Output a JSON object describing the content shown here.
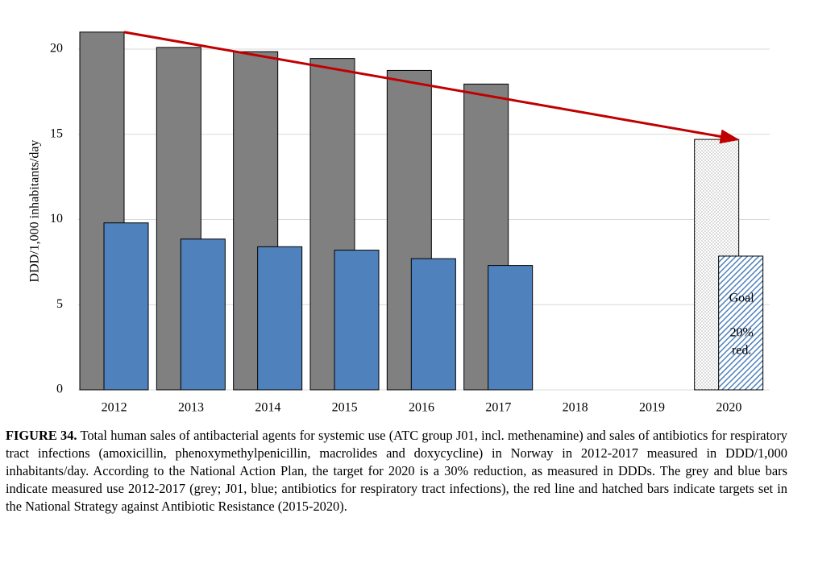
{
  "chart_data": {
    "type": "bar",
    "ylabel": "DDD/1,000 inhabitants/day",
    "categories": [
      "2012",
      "2013",
      "2014",
      "2015",
      "2016",
      "2017",
      "2018",
      "2019",
      "2020"
    ],
    "series": [
      {
        "color": "#808080",
        "values": [
          21.0,
          20.1,
          19.85,
          19.45,
          18.75,
          17.95,
          null,
          null,
          null
        ]
      },
      {
        "color": "#4f81bd",
        "values": [
          9.8,
          8.85,
          8.4,
          8.2,
          7.7,
          7.3,
          null,
          null,
          null
        ]
      },
      {
        "color": "#808080",
        "pattern": "dots",
        "values": [
          null,
          null,
          null,
          null,
          null,
          null,
          null,
          null,
          14.7
        ]
      },
      {
        "color": "#4f81bd",
        "pattern": "hatch",
        "values": [
          null,
          null,
          null,
          null,
          null,
          null,
          null,
          null,
          7.85
        ]
      }
    ],
    "ylim": [
      0,
      21.5
    ],
    "yticks": [
      0,
      5,
      10,
      15,
      20
    ],
    "grid": true,
    "arrow_color": "#c00000",
    "annotations": [
      "Goal",
      "20%",
      "red."
    ]
  },
  "caption": {
    "label": "FIGURE 34.",
    "text": "Total human sales of antibacterial agents for systemic use (ATC group J01, incl. methenamine) and sales of antibiotics for respiratory tract infections (amoxicillin, phenoxymethylpenicillin, macrolides and doxycycline) in Norway in 2012-2017 measured in DDD/1,000 inhabitants/day. According to the National Action Plan, the target for 2020 is a 30% reduction, as measured in DDDs. The grey and blue bars indicate measured use 2012-2017 (grey; J01, blue; antibiotics for respiratory tract infections), the red line and hatched bars indicate targets set in the National Strategy against Antibiotic Resistance (2015-2020)."
  }
}
